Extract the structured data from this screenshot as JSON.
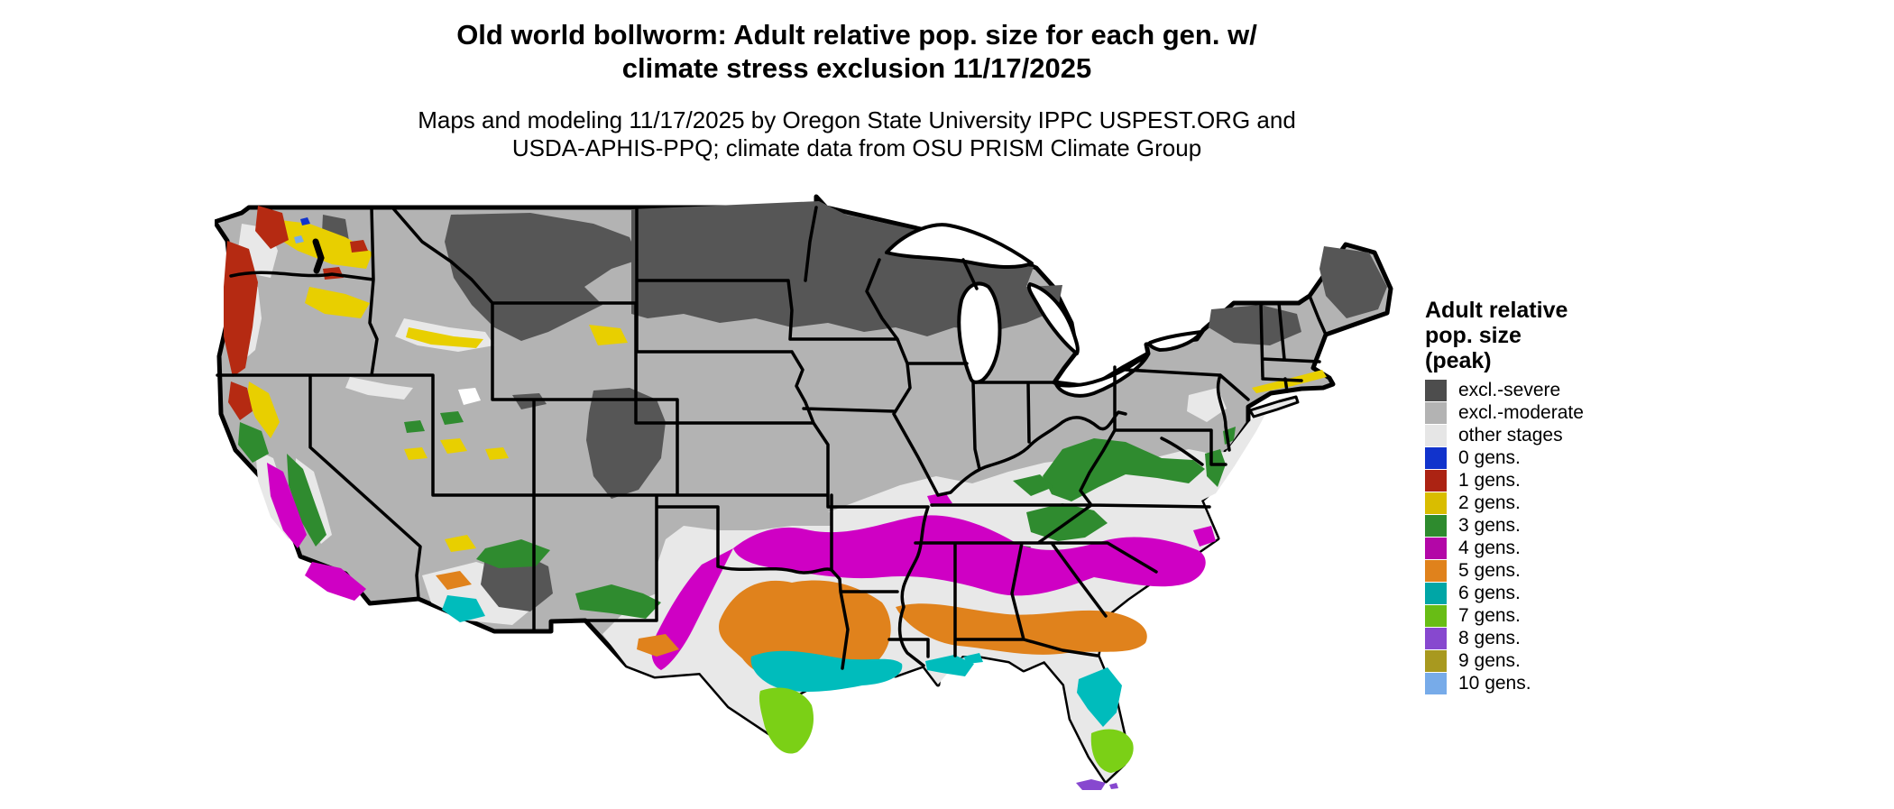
{
  "title": {
    "line1": "Old world bollworm: Adult relative pop. size for each gen. w/",
    "line2": "climate stress exclusion 11/17/2025"
  },
  "subtitle": {
    "line1": "Maps and modeling 11/17/2025 by Oregon State University IPPC USPEST.ORG and",
    "line2": "USDA-APHIS-PPQ; climate data from OSU PRISM Climate Group"
  },
  "legend": {
    "title_lines": [
      "Adult relative",
      "pop. size",
      "(peak)"
    ],
    "items": [
      {
        "label": "excl.-severe",
        "color": "#4d4d4d"
      },
      {
        "label": "excl.-moderate",
        "color": "#b3b3b3"
      },
      {
        "label": "other stages",
        "color": "#e6e6e6"
      },
      {
        "label": "0 gens.",
        "color": "#1133cc"
      },
      {
        "label": "1 gens.",
        "color": "#ac2313"
      },
      {
        "label": "2 gens.",
        "color": "#d9bd00"
      },
      {
        "label": "3 gens.",
        "color": "#2e8b2e"
      },
      {
        "label": "4 gens.",
        "color": "#b307a7"
      },
      {
        "label": "5 gens.",
        "color": "#e0821c"
      },
      {
        "label": "6 gens.",
        "color": "#00a6a6"
      },
      {
        "label": "7 gens.",
        "color": "#68bd15"
      },
      {
        "label": "8 gens.",
        "color": "#8748cf"
      },
      {
        "label": "9 gens.",
        "color": "#a8991f"
      },
      {
        "label": "10 gens.",
        "color": "#77abe9"
      }
    ]
  },
  "map": {
    "palette": {
      "severe": "#565656",
      "moderate": "#b3b3b3",
      "other": "#e8e8e8",
      "gen0": "#1133cc",
      "gen1": "#b52a12",
      "gen2": "#e8cf00",
      "gen3": "#2f8b2f",
      "gen4": "#cf00c4",
      "gen5": "#e0821c",
      "gen6": "#00bcbc",
      "gen7": "#7bd016",
      "gen8": "#8748cf",
      "gen10": "#77abe9",
      "water": "#ffffff",
      "border": "#000000"
    }
  }
}
